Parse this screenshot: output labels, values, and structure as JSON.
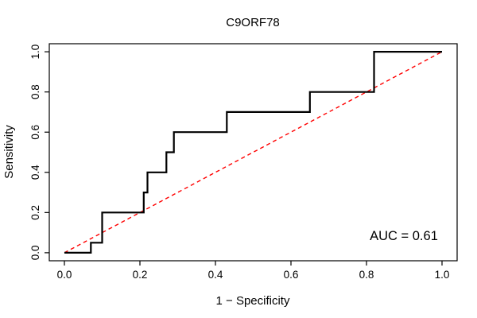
{
  "figure": {
    "title": "C9ORF78",
    "xlabel": "1 − Specificity",
    "ylabel": "Sensitivity",
    "auc_text": "AUC = 0.61"
  },
  "chart_data": {
    "type": "line",
    "title": "C9ORF78",
    "xlabel": "1 − Specificity",
    "ylabel": "Sensitivity",
    "xlim": [
      0,
      1
    ],
    "ylim": [
      0,
      1
    ],
    "grid": false,
    "legend": "none",
    "x_ticks": {
      "values": [
        0,
        0.2,
        0.4,
        0.6,
        0.8,
        1.0
      ],
      "labels": [
        "0.0",
        "0.2",
        "0.4",
        "0.6",
        "0.8",
        "1.0"
      ]
    },
    "y_ticks": {
      "values": [
        0,
        0.2,
        0.4,
        0.6,
        0.8,
        1.0
      ],
      "labels": [
        "0.0",
        "0.2",
        "0.4",
        "0.6",
        "0.8",
        "1.0"
      ]
    },
    "series": [
      {
        "name": "chance-diagonal",
        "color": "#ff0000",
        "style": "dashed",
        "width": 1.4,
        "points": [
          [
            0,
            0
          ],
          [
            1,
            1
          ]
        ]
      },
      {
        "name": "roc-curve",
        "color": "#000000",
        "style": "solid",
        "width": 2.2,
        "points": [
          [
            0.0,
            0.0
          ],
          [
            0.07,
            0.0
          ],
          [
            0.07,
            0.05
          ],
          [
            0.1,
            0.05
          ],
          [
            0.1,
            0.2
          ],
          [
            0.21,
            0.2
          ],
          [
            0.21,
            0.3
          ],
          [
            0.22,
            0.3
          ],
          [
            0.22,
            0.4
          ],
          [
            0.27,
            0.4
          ],
          [
            0.27,
            0.5
          ],
          [
            0.29,
            0.5
          ],
          [
            0.29,
            0.6
          ],
          [
            0.43,
            0.6
          ],
          [
            0.43,
            0.7
          ],
          [
            0.65,
            0.7
          ],
          [
            0.65,
            0.8
          ],
          [
            0.82,
            0.8
          ],
          [
            0.82,
            1.0
          ],
          [
            1.0,
            1.0
          ]
        ]
      }
    ],
    "annotations": [
      {
        "text": "AUC = 0.61",
        "x": 0.9,
        "y": 0.07
      }
    ]
  }
}
